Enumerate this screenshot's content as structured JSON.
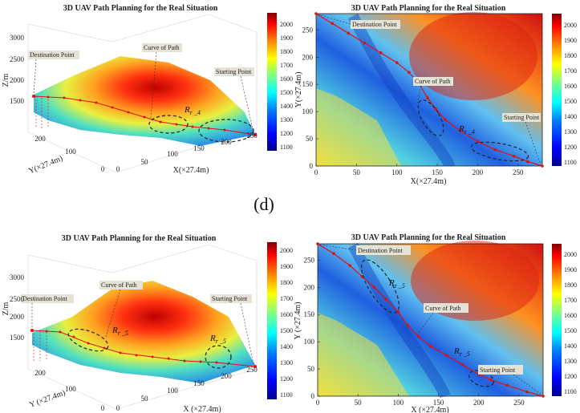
{
  "figure_label": "(d)",
  "colormap": [
    "#00008f",
    "#0000ff",
    "#0080ff",
    "#00ffff",
    "#80ff80",
    "#ffff00",
    "#ff8000",
    "#ff0000",
    "#800000"
  ],
  "path_color": "#e01010",
  "chart_data": [
    {
      "id": "top-3d",
      "type": "surface3d",
      "title": "3D UAV Path Planning for the Real Situation",
      "xlabel": "X(×27.4m)",
      "ylabel": "Y(×27.4m)",
      "zlabel": "Z/m",
      "xticks": [
        0,
        50,
        100,
        150,
        200,
        250
      ],
      "yticks": [
        0,
        100,
        200
      ],
      "zticks": [
        1500,
        2000,
        2500,
        3000
      ],
      "colorbar": {
        "min": 1100,
        "max": 2000,
        "ticks": [
          1100,
          1200,
          1300,
          1400,
          1500,
          1600,
          1700,
          1800,
          1900,
          2000
        ]
      },
      "annotations": [
        "Destination Point",
        "Curve of Path",
        "Starting Point"
      ],
      "region_label": "R",
      "region_sub": "r _4",
      "start": [
        280,
        0
      ],
      "destination": [
        0,
        280
      ]
    },
    {
      "id": "top-2d",
      "type": "heatmap",
      "title": "3D UAV Path Planning for the Real Situation",
      "xlabel": "X(×27.4m)",
      "ylabel": "Y(×27.4m)",
      "xticks": [
        0,
        50,
        100,
        150,
        200,
        250
      ],
      "yticks": [
        0,
        50,
        100,
        150,
        200,
        250
      ],
      "xlim": [
        0,
        280
      ],
      "ylim": [
        0,
        280
      ],
      "colorbar": {
        "min": 1100,
        "max": 2000,
        "ticks": [
          1100,
          1200,
          1300,
          1400,
          1500,
          1600,
          1700,
          1800,
          1900,
          2000
        ]
      },
      "annotations": [
        "Destination Point",
        "Curve of Path",
        "Starting Point"
      ],
      "region_label": "R",
      "region_sub": "r _4",
      "path": [
        [
          0,
          280
        ],
        [
          20,
          262
        ],
        [
          40,
          244
        ],
        [
          60,
          226
        ],
        [
          80,
          208
        ],
        [
          100,
          190
        ],
        [
          115,
          172
        ],
        [
          128,
          150
        ],
        [
          138,
          125
        ],
        [
          148,
          105
        ],
        [
          160,
          85
        ],
        [
          178,
          65
        ],
        [
          200,
          45
        ],
        [
          222,
          30
        ],
        [
          245,
          18
        ],
        [
          262,
          8
        ],
        [
          280,
          0
        ]
      ],
      "start": [
        280,
        0
      ],
      "destination": [
        0,
        280
      ]
    },
    {
      "id": "bottom-3d",
      "type": "surface3d",
      "title": "3D UAV Path Planning for the Real Situation",
      "xlabel": "X  (×27.4m)",
      "ylabel": "Y  (×27.4m)",
      "zlabel": "Z/m",
      "xticks": [
        0,
        50,
        100,
        150,
        200,
        250
      ],
      "yticks": [
        0,
        100,
        200
      ],
      "zticks": [
        1500,
        2000,
        2500,
        3000
      ],
      "colorbar": {
        "min": 1100,
        "max": 2000,
        "ticks": [
          1100,
          1200,
          1300,
          1400,
          1500,
          1600,
          1700,
          1800,
          1900,
          2000
        ]
      },
      "annotations": [
        "Destination Point",
        "Curve of Path",
        "Starting Point"
      ],
      "region_label": "R",
      "region_sub": "r _5",
      "start": [
        280,
        0
      ],
      "destination": [
        0,
        280
      ]
    },
    {
      "id": "bottom-2d",
      "type": "heatmap",
      "title": "3D UAV Path Planning for the Real Situation",
      "xlabel": "X  (×27.4m)",
      "ylabel": "Y  (×27.4m)",
      "xticks": [
        0,
        50,
        100,
        150,
        200,
        250
      ],
      "yticks": [
        0,
        50,
        100,
        150,
        200,
        250
      ],
      "xlim": [
        0,
        280
      ],
      "ylim": [
        0,
        280
      ],
      "colorbar": {
        "min": 1100,
        "max": 2000,
        "ticks": [
          1100,
          1200,
          1300,
          1400,
          1500,
          1600,
          1700,
          1800,
          1900,
          2000
        ]
      },
      "annotations": [
        "Destination Point",
        "Curve of Path",
        "Starting Point"
      ],
      "region_label": "R",
      "region_sub": "r _5",
      "path": [
        [
          0,
          280
        ],
        [
          20,
          262
        ],
        [
          40,
          240
        ],
        [
          55,
          220
        ],
        [
          70,
          200
        ],
        [
          85,
          178
        ],
        [
          100,
          155
        ],
        [
          112,
          130
        ],
        [
          125,
          110
        ],
        [
          140,
          92
        ],
        [
          160,
          75
        ],
        [
          180,
          58
        ],
        [
          200,
          40
        ],
        [
          215,
          30
        ],
        [
          235,
          20
        ],
        [
          260,
          8
        ],
        [
          280,
          0
        ]
      ],
      "start": [
        280,
        0
      ],
      "destination": [
        0,
        280
      ]
    }
  ]
}
